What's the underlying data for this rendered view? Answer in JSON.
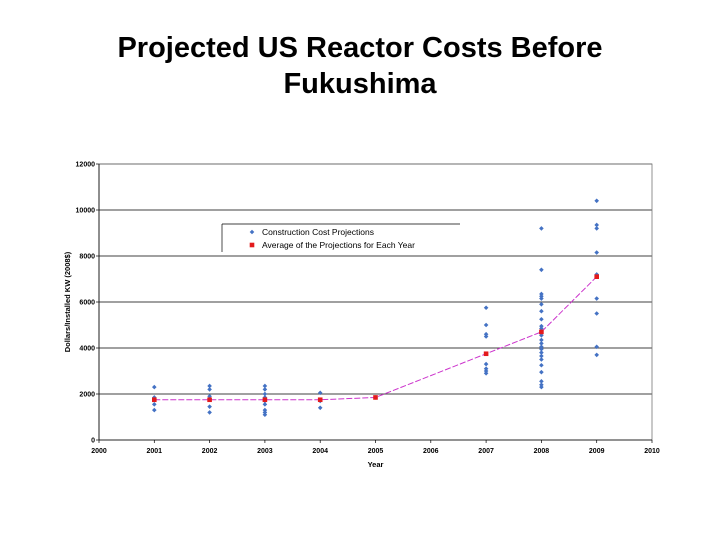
{
  "title_lines": [
    "Projected US Reactor Costs Before",
    "Fukushima"
  ],
  "chart_data": {
    "type": "scatter",
    "xlabel": "Year",
    "ylabel": "Dollars/Installed KW (2008$)",
    "xlim": [
      2000,
      2010
    ],
    "ylim": [
      0,
      12000
    ],
    "x_ticks": [
      "2000",
      "2001",
      "2002",
      "2003",
      "2004",
      "2005",
      "2006",
      "2007",
      "2008",
      "2009",
      "2010"
    ],
    "y_ticks": [
      "0",
      "2000",
      "4000",
      "6000",
      "8000",
      "10000",
      "12000"
    ],
    "grid": "horizontal",
    "legend_position": "upper-left",
    "series": [
      {
        "name": "Construction Cost Projections",
        "marker": "diamond",
        "color": "#4472C4",
        "points": [
          [
            2001,
            2300
          ],
          [
            2001,
            1850
          ],
          [
            2001,
            1750
          ],
          [
            2001,
            1550
          ],
          [
            2001,
            1300
          ],
          [
            2002,
            2350
          ],
          [
            2002,
            2200
          ],
          [
            2002,
            1900
          ],
          [
            2002,
            1750
          ],
          [
            2002,
            1450
          ],
          [
            2002,
            1200
          ],
          [
            2003,
            2350
          ],
          [
            2003,
            2200
          ],
          [
            2003,
            2000
          ],
          [
            2003,
            1850
          ],
          [
            2003,
            1700
          ],
          [
            2003,
            1550
          ],
          [
            2003,
            1300
          ],
          [
            2003,
            1200
          ],
          [
            2003,
            1100
          ],
          [
            2004,
            2050
          ],
          [
            2004,
            1700
          ],
          [
            2004,
            1400
          ],
          [
            2005,
            1850
          ],
          [
            2007,
            5750
          ],
          [
            2007,
            5000
          ],
          [
            2007,
            4600
          ],
          [
            2007,
            4500
          ],
          [
            2007,
            3750
          ],
          [
            2007,
            3300
          ],
          [
            2007,
            3100
          ],
          [
            2007,
            3000
          ],
          [
            2007,
            2900
          ],
          [
            2008,
            9200
          ],
          [
            2008,
            7400
          ],
          [
            2008,
            6350
          ],
          [
            2008,
            6250
          ],
          [
            2008,
            6150
          ],
          [
            2008,
            5900
          ],
          [
            2008,
            5600
          ],
          [
            2008,
            5250
          ],
          [
            2008,
            4950
          ],
          [
            2008,
            4850
          ],
          [
            2008,
            4700
          ],
          [
            2008,
            4550
          ],
          [
            2008,
            4350
          ],
          [
            2008,
            4200
          ],
          [
            2008,
            4050
          ],
          [
            2008,
            3950
          ],
          [
            2008,
            3800
          ],
          [
            2008,
            3650
          ],
          [
            2008,
            3500
          ],
          [
            2008,
            3250
          ],
          [
            2008,
            2950
          ],
          [
            2008,
            2550
          ],
          [
            2008,
            2400
          ],
          [
            2008,
            2300
          ],
          [
            2009,
            10400
          ],
          [
            2009,
            9350
          ],
          [
            2009,
            9200
          ],
          [
            2009,
            8150
          ],
          [
            2009,
            7200
          ],
          [
            2009,
            6150
          ],
          [
            2009,
            5500
          ],
          [
            2009,
            4050
          ],
          [
            2009,
            3700
          ]
        ]
      },
      {
        "name": "Average of the Projections for Each Year",
        "marker": "square",
        "color": "#E31A1C",
        "line_color": "#CC33CC",
        "points": [
          [
            2001,
            1750
          ],
          [
            2002,
            1750
          ],
          [
            2003,
            1750
          ],
          [
            2004,
            1750
          ],
          [
            2005,
            1850
          ],
          [
            2007,
            3750
          ],
          [
            2008,
            4700
          ],
          [
            2009,
            7100
          ]
        ]
      }
    ]
  }
}
